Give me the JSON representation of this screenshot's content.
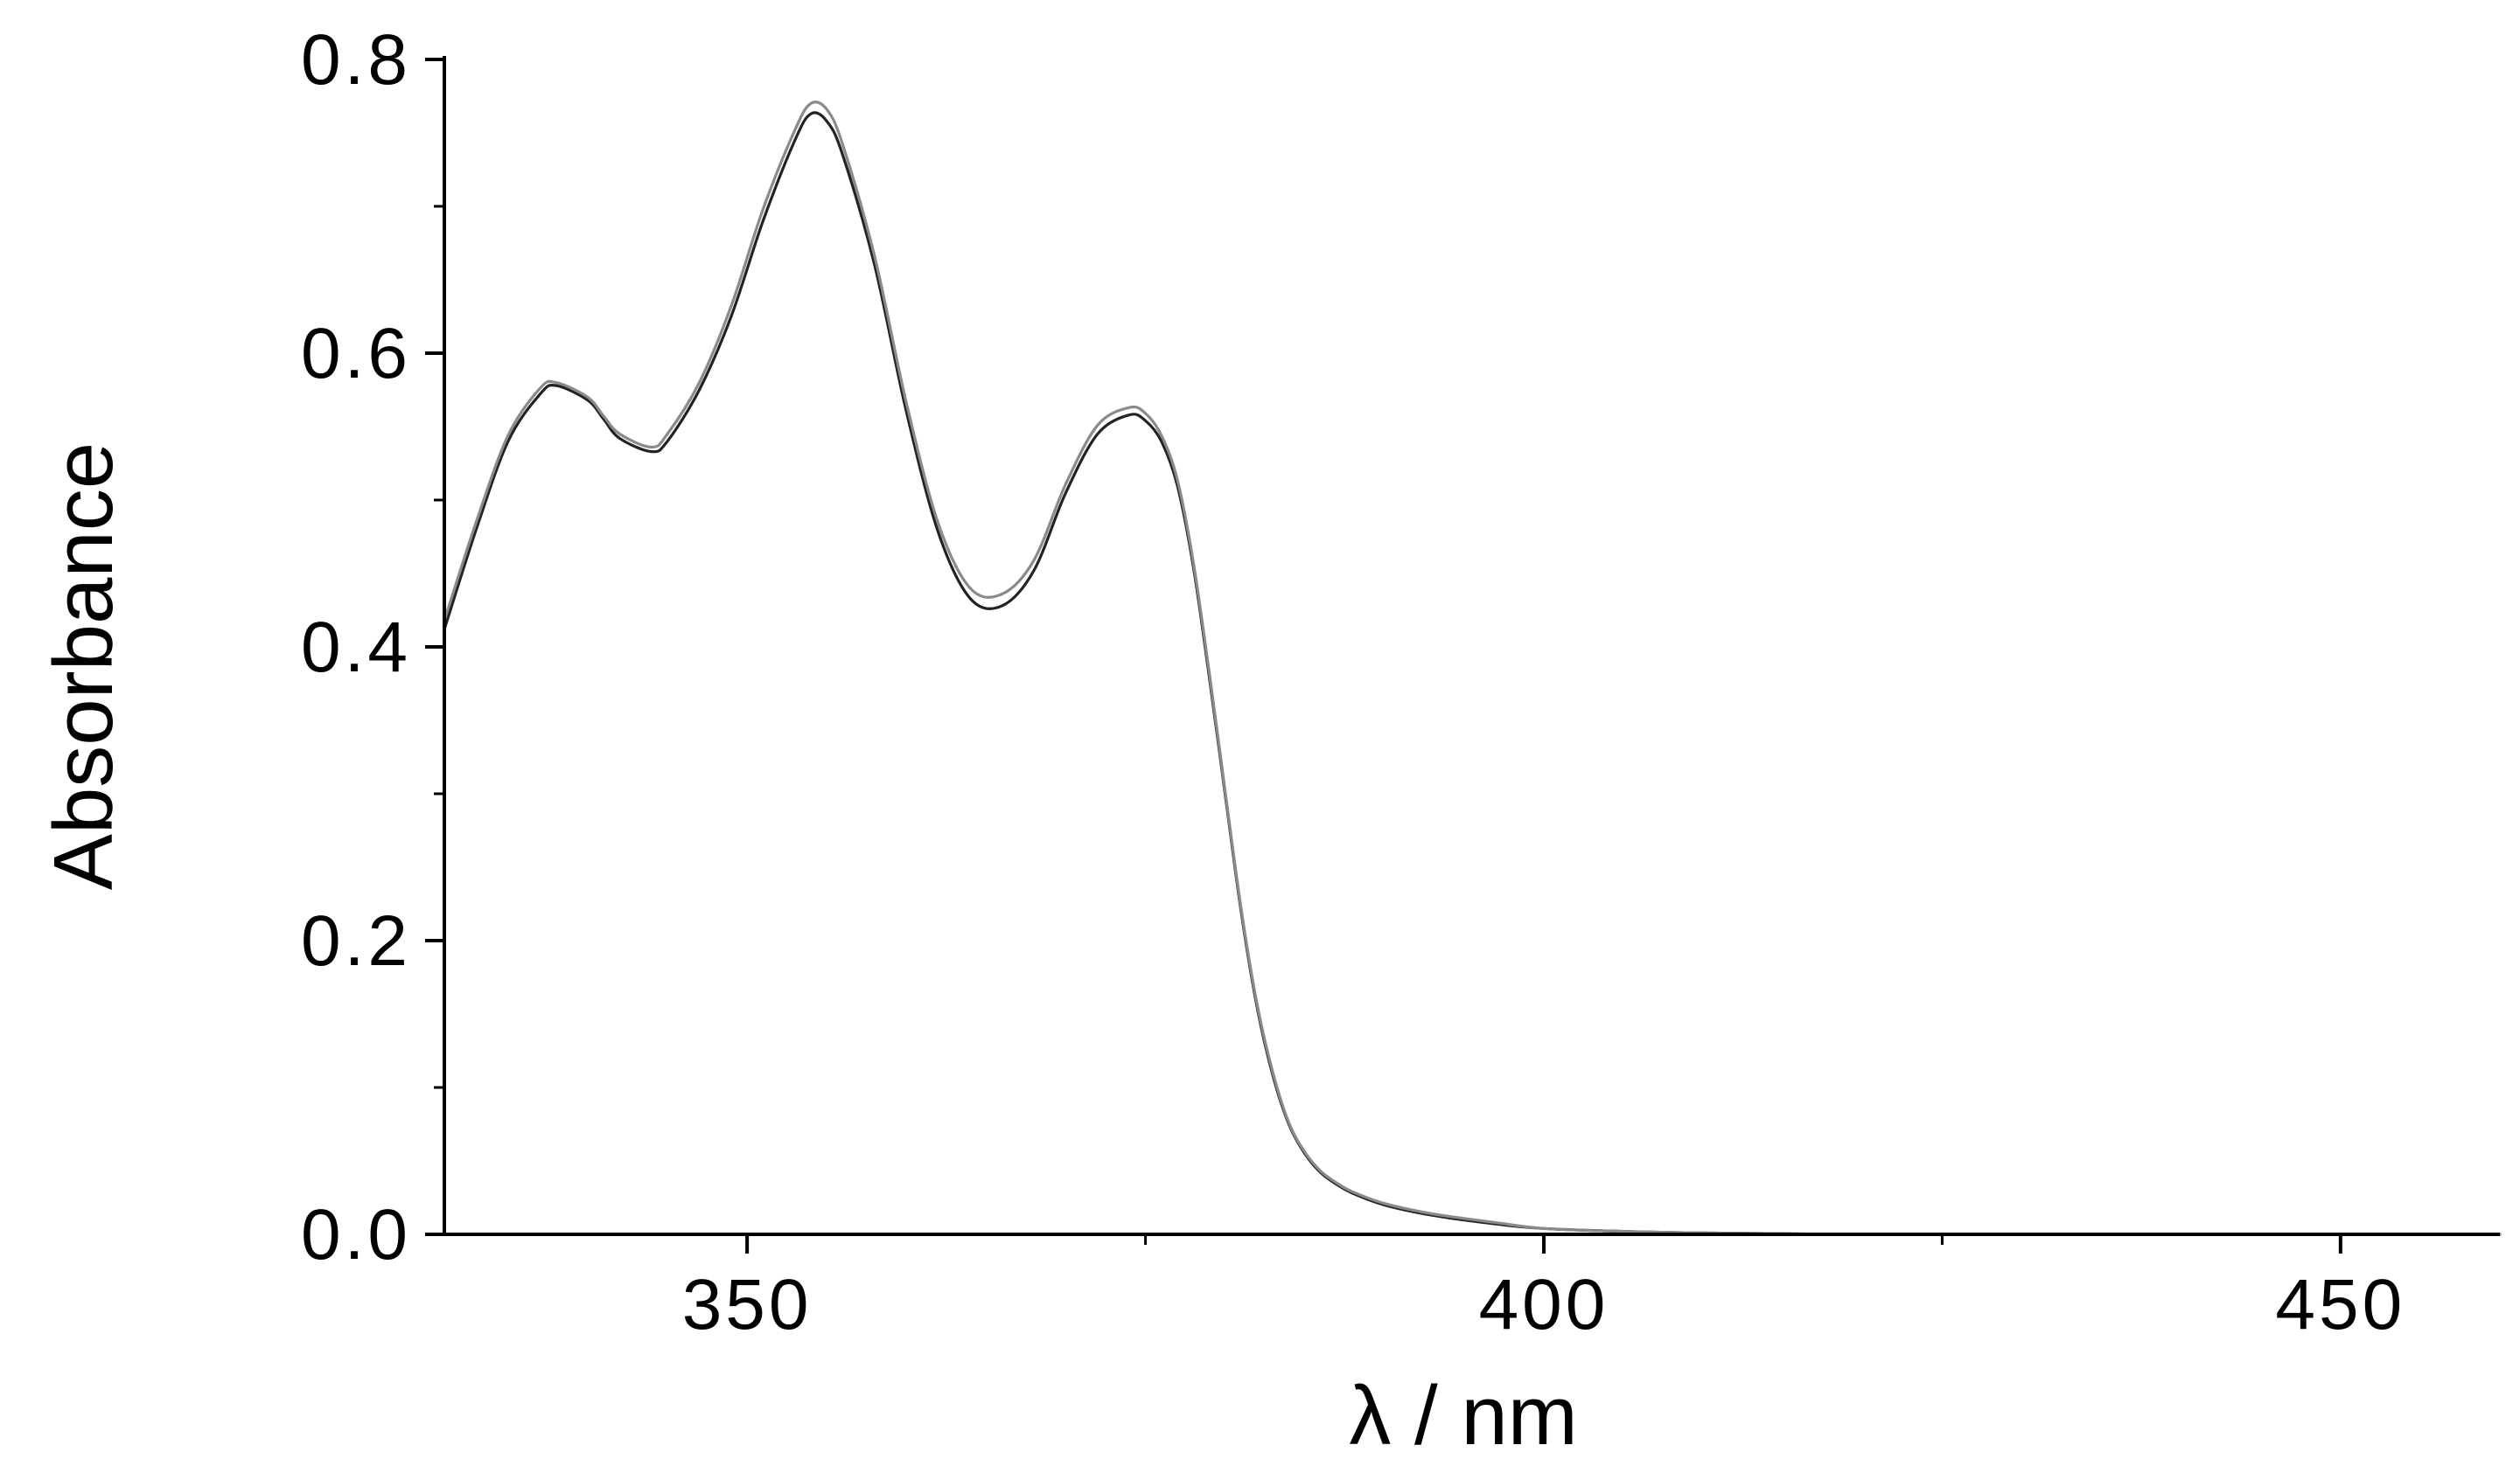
{
  "chart_data": {
    "type": "line",
    "title": "",
    "xlabel": "λ / nm",
    "ylabel": "Absorbance",
    "xlim": [
      331,
      460
    ],
    "ylim": [
      0.0,
      0.8
    ],
    "xticks": [
      350,
      400,
      450
    ],
    "xtick_labels": [
      "350",
      "400",
      "450"
    ],
    "x_minor_ticks": [
      375,
      425
    ],
    "yticks": [
      0.0,
      0.2,
      0.4,
      0.6,
      0.8
    ],
    "ytick_labels": [
      "0.0",
      "0.2",
      "0.4",
      "0.6",
      "0.8"
    ],
    "y_minor_ticks": [
      0.1,
      0.3,
      0.5,
      0.7
    ],
    "grid": false,
    "legend": false,
    "series": [
      {
        "color": "#222222",
        "x": [
          331,
          333,
          335,
          337,
          338,
          340,
          341,
          342,
          344,
          345,
          347,
          349,
          351,
          353,
          354,
          355,
          356,
          358,
          360,
          362,
          364,
          366,
          368,
          370,
          372,
          374,
          375,
          376,
          377,
          378,
          379,
          380,
          381,
          382,
          383,
          384,
          385,
          386,
          387,
          388,
          390,
          393,
          397,
          400,
          405,
          410,
          420,
          430,
          440,
          450,
          460
        ],
        "y": [
          0.412,
          0.48,
          0.54,
          0.572,
          0.578,
          0.568,
          0.555,
          0.542,
          0.533,
          0.54,
          0.575,
          0.625,
          0.69,
          0.745,
          0.763,
          0.758,
          0.735,
          0.66,
          0.56,
          0.478,
          0.433,
          0.428,
          0.452,
          0.505,
          0.545,
          0.558,
          0.554,
          0.54,
          0.51,
          0.455,
          0.38,
          0.3,
          0.22,
          0.155,
          0.108,
          0.075,
          0.055,
          0.042,
          0.034,
          0.028,
          0.02,
          0.013,
          0.007,
          0.004,
          0.002,
          0.001,
          0.0,
          0.0,
          0.0,
          0.0,
          0.0
        ]
      },
      {
        "color": "#8a8a8a",
        "x": [
          331,
          333,
          335,
          337,
          338,
          340,
          341,
          342,
          344,
          345,
          347,
          349,
          351,
          353,
          354,
          355,
          356,
          358,
          360,
          362,
          364,
          366,
          368,
          370,
          372,
          374,
          375,
          376,
          377,
          378,
          379,
          380,
          381,
          382,
          383,
          384,
          385,
          386,
          387,
          388,
          390,
          393,
          397,
          400,
          405,
          410,
          420,
          430,
          440,
          450,
          460
        ],
        "y": [
          0.418,
          0.485,
          0.544,
          0.576,
          0.58,
          0.57,
          0.557,
          0.545,
          0.536,
          0.545,
          0.58,
          0.632,
          0.698,
          0.752,
          0.77,
          0.766,
          0.742,
          0.666,
          0.566,
          0.484,
          0.44,
          0.436,
          0.459,
          0.511,
          0.551,
          0.563,
          0.559,
          0.544,
          0.514,
          0.458,
          0.383,
          0.302,
          0.222,
          0.157,
          0.11,
          0.076,
          0.056,
          0.043,
          0.035,
          0.029,
          0.021,
          0.014,
          0.008,
          0.004,
          0.002,
          0.001,
          0.0,
          0.0,
          0.0,
          0.0,
          0.0
        ]
      }
    ]
  }
}
